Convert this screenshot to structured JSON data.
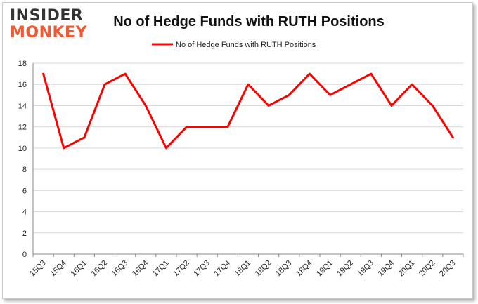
{
  "logo": {
    "line1": "INSIDER",
    "line2": "MONKEY"
  },
  "chart_data": {
    "type": "line",
    "title": "No of Hedge Funds with RUTH Positions",
    "categories": [
      "15Q3",
      "15Q4",
      "16Q1",
      "16Q2",
      "16Q3",
      "16Q4",
      "17Q1",
      "17Q2",
      "17Q3",
      "17Q4",
      "18Q1",
      "18Q2",
      "18Q3",
      "18Q4",
      "19Q1",
      "19Q2",
      "19Q3",
      "19Q4",
      "20Q1",
      "20Q2",
      "20Q3"
    ],
    "series": [
      {
        "name": "No of Hedge Funds with RUTH Positions",
        "values": [
          17,
          10,
          11,
          16,
          17,
          14,
          10,
          12,
          12,
          12,
          16,
          14,
          15,
          17,
          15,
          16,
          17,
          14,
          16,
          14,
          11
        ]
      }
    ],
    "ylim": [
      0,
      18
    ],
    "yticks": [
      0,
      2,
      4,
      6,
      8,
      10,
      12,
      14,
      16,
      18
    ],
    "grid": true,
    "legend": "top-center",
    "line_color": "#ff0000"
  }
}
